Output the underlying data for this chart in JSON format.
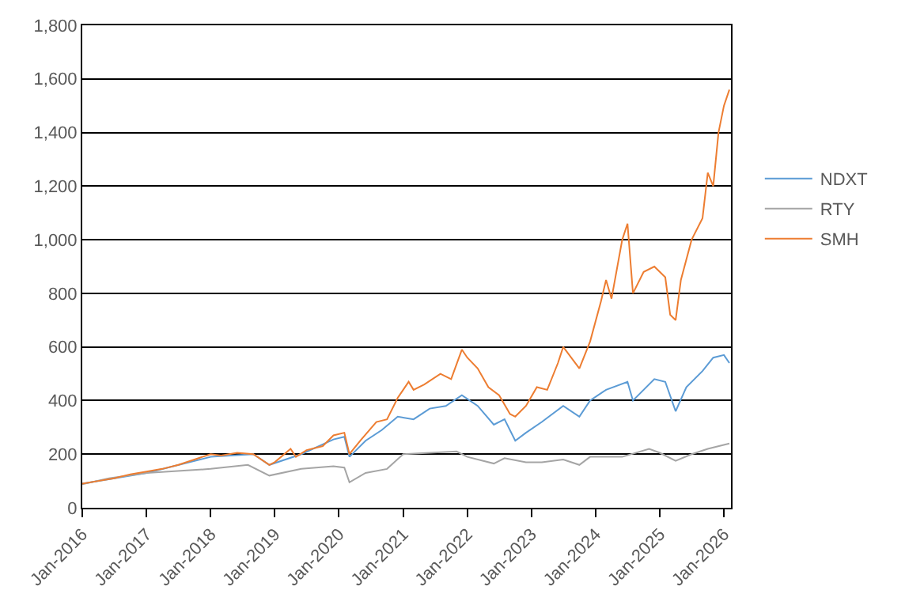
{
  "chart_data": {
    "type": "line",
    "xlim": [
      "2016-01",
      "2026-02-10"
    ],
    "xticks": [
      {
        "value": "2016-01",
        "label": "Jan-2016"
      },
      {
        "value": "2017-01",
        "label": "Jan-2017"
      },
      {
        "value": "2018-01",
        "label": "Jan-2018"
      },
      {
        "value": "2019-01",
        "label": "Jan-2019"
      },
      {
        "value": "2020-01",
        "label": "Jan-2020"
      },
      {
        "value": "2021-01",
        "label": "Jan-2021"
      },
      {
        "value": "2022-01",
        "label": "Jan-2022"
      },
      {
        "value": "2023-01",
        "label": "Jan-2023"
      },
      {
        "value": "2024-01",
        "label": "Jan-2024"
      },
      {
        "value": "2025-01",
        "label": "Jan-2025"
      },
      {
        "value": "2026-01",
        "label": "Jan-2026"
      }
    ],
    "ylim": [
      0,
      1800
    ],
    "yticks": [
      0,
      200,
      400,
      600,
      800,
      {
        "value": 1000,
        "label": "1,000"
      },
      {
        "value": 1200,
        "label": "1,200"
      },
      {
        "value": 1400,
        "label": "1,400"
      },
      {
        "value": 1600,
        "label": "1,600"
      },
      {
        "value": 1800,
        "label": "1,800"
      }
    ],
    "grid": "y",
    "legend": "right",
    "marker": "none",
    "line_style": "solid",
    "series": [
      {
        "name": "NDXT",
        "color": "#5b9bd5",
        "x": [
          "2016-01",
          "2017-01",
          "2018-01",
          "2018-09",
          "2018-12",
          "2019-06",
          "2019-12",
          "2020-02",
          "2020-03",
          "2020-06",
          "2020-09",
          "2020-12",
          "2021-03",
          "2021-06",
          "2021-09",
          "2021-12",
          "2022-03",
          "2022-06",
          "2022-08",
          "2022-10",
          "2022-12",
          "2023-03",
          "2023-07",
          "2023-10",
          "2023-12",
          "2024-03",
          "2024-07",
          "2024-08",
          "2024-12",
          "2025-02",
          "2025-04",
          "2025-06",
          "2025-09",
          "2025-11",
          "2026-01",
          "2026-02"
        ],
        "values": [
          90,
          130,
          190,
          200,
          160,
          200,
          255,
          265,
          190,
          250,
          290,
          340,
          330,
          370,
          380,
          420,
          380,
          310,
          330,
          250,
          280,
          320,
          380,
          340,
          400,
          440,
          470,
          400,
          480,
          470,
          360,
          450,
          510,
          560,
          570,
          540
        ]
      },
      {
        "name": "RTY",
        "color": "#a5a5a5",
        "x": [
          "2016-01",
          "2016-06",
          "2017-01",
          "2018-01",
          "2018-08",
          "2018-12",
          "2019-06",
          "2019-12",
          "2020-02",
          "2020-03",
          "2020-06",
          "2020-10",
          "2021-01",
          "2021-06",
          "2021-11",
          "2022-01",
          "2022-06",
          "2022-08",
          "2022-12",
          "2023-03",
          "2023-07",
          "2023-10",
          "2023-12",
          "2024-06",
          "2024-11",
          "2025-01",
          "2025-04",
          "2025-07",
          "2025-10",
          "2026-02"
        ],
        "values": [
          88,
          110,
          130,
          145,
          160,
          120,
          145,
          155,
          150,
          95,
          130,
          145,
          200,
          205,
          210,
          190,
          165,
          185,
          170,
          170,
          180,
          160,
          190,
          190,
          220,
          205,
          175,
          200,
          220,
          240
        ]
      },
      {
        "name": "SMH",
        "color": "#ed7d31",
        "x": [
          "2016-01",
          "2016-04",
          "2016-07",
          "2016-10",
          "2017-01",
          "2017-04",
          "2017-07",
          "2017-10",
          "2018-01",
          "2018-03",
          "2018-06",
          "2018-09",
          "2018-12",
          "2019-01",
          "2019-04",
          "2019-05",
          "2019-07",
          "2019-10",
          "2019-12",
          "2020-02",
          "2020-03",
          "2020-05",
          "2020-08",
          "2020-10",
          "2020-12",
          "2021-02",
          "2021-03",
          "2021-05",
          "2021-08",
          "2021-10",
          "2021-12",
          "2022-01",
          "2022-03",
          "2022-05",
          "2022-07",
          "2022-09",
          "2022-10",
          "2022-12",
          "2023-02",
          "2023-04",
          "2023-06",
          "2023-07",
          "2023-10",
          "2023-12",
          "2024-02",
          "2024-03",
          "2024-04",
          "2024-06",
          "2024-07",
          "2024-08",
          "2024-10",
          "2024-12",
          "2025-02",
          "2025-03",
          "2025-04",
          "2025-05",
          "2025-07",
          "2025-09",
          "2025-10",
          "2025-11",
          "2025-12",
          "2026-01",
          "2026-02"
        ],
        "values": [
          90,
          100,
          110,
          125,
          135,
          145,
          160,
          180,
          200,
          195,
          205,
          200,
          160,
          170,
          220,
          190,
          215,
          230,
          270,
          280,
          200,
          250,
          320,
          330,
          410,
          470,
          440,
          460,
          500,
          480,
          590,
          560,
          520,
          450,
          420,
          350,
          340,
          380,
          450,
          440,
          540,
          600,
          520,
          620,
          770,
          850,
          780,
          1000,
          1060,
          800,
          880,
          900,
          860,
          720,
          700,
          850,
          1000,
          1080,
          1250,
          1200,
          1400,
          1500,
          1560
        ]
      }
    ]
  }
}
